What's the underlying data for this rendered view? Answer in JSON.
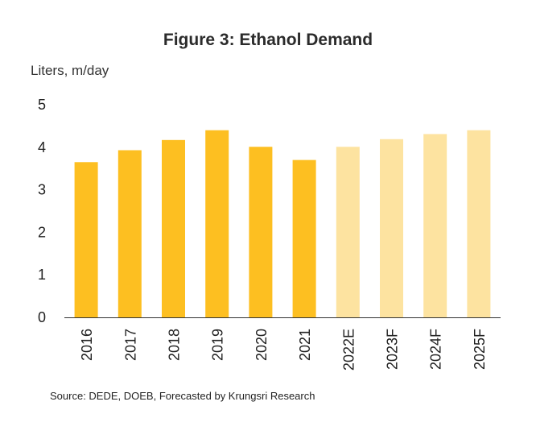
{
  "chart_data": {
    "type": "bar",
    "title": "Figure 3: Ethanol Demand",
    "ylabel": "Liters, m/day",
    "xlabel": "",
    "ylim": [
      0,
      5
    ],
    "yticks": [
      "0",
      "1",
      "2",
      "3",
      "4",
      "5"
    ],
    "grid": false,
    "categories": [
      "2016",
      "2017",
      "2018",
      "2019",
      "2020",
      "2021",
      "2022E",
      "2023F",
      "2024F",
      "2025F"
    ],
    "values": [
      3.65,
      3.93,
      4.17,
      4.4,
      4.01,
      3.7,
      4.01,
      4.19,
      4.31,
      4.4
    ],
    "forecast": [
      false,
      false,
      false,
      false,
      false,
      false,
      true,
      true,
      true,
      true
    ],
    "colors": {
      "actual": "#FDBF21",
      "forecast": "#FDE3A0",
      "axis": "#333333"
    },
    "source": "Source: DEDE, DOEB, Forecasted by Krungsri Research"
  }
}
